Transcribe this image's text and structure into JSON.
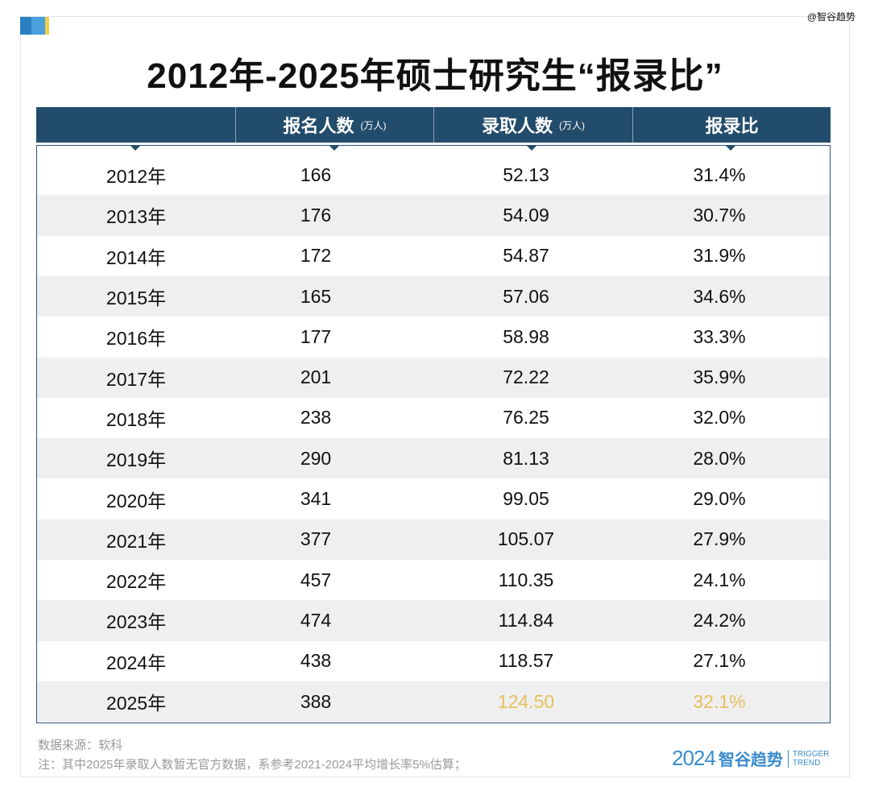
{
  "watermark": "@智谷趋势",
  "title": "2012年-2025年硕士研究生“报录比”",
  "headers": [
    {
      "label": "",
      "unit": ""
    },
    {
      "label": "报名人数",
      "unit": "(万人)"
    },
    {
      "label": "录取人数",
      "unit": "(万人)"
    },
    {
      "label": "报录比",
      "unit": ""
    }
  ],
  "rows": [
    {
      "year": "2012年",
      "applicants": "166",
      "admitted": "52.13",
      "ratio": "31.4%"
    },
    {
      "year": "2013年",
      "applicants": "176",
      "admitted": "54.09",
      "ratio": "30.7%"
    },
    {
      "year": "2014年",
      "applicants": "172",
      "admitted": "54.87",
      "ratio": "31.9%"
    },
    {
      "year": "2015年",
      "applicants": "165",
      "admitted": "57.06",
      "ratio": "34.6%"
    },
    {
      "year": "2016年",
      "applicants": "177",
      "admitted": "58.98",
      "ratio": "33.3%"
    },
    {
      "year": "2017年",
      "applicants": "201",
      "admitted": "72.22",
      "ratio": "35.9%"
    },
    {
      "year": "2018年",
      "applicants": "238",
      "admitted": "76.25",
      "ratio": "32.0%"
    },
    {
      "year": "2019年",
      "applicants": "290",
      "admitted": "81.13",
      "ratio": "28.0%"
    },
    {
      "year": "2020年",
      "applicants": "341",
      "admitted": "99.05",
      "ratio": "29.0%"
    },
    {
      "year": "2021年",
      "applicants": "377",
      "admitted": "105.07",
      "ratio": "27.9%"
    },
    {
      "year": "2022年",
      "applicants": "457",
      "admitted": "110.35",
      "ratio": "24.1%"
    },
    {
      "year": "2023年",
      "applicants": "474",
      "admitted": "114.84",
      "ratio": "24.2%"
    },
    {
      "year": "2024年",
      "applicants": "438",
      "admitted": "118.57",
      "ratio": "27.1%"
    },
    {
      "year": "2025年",
      "applicants": "388",
      "admitted": "124.50",
      "ratio": "32.1%",
      "estimated": true
    }
  ],
  "colors": {
    "header": "#224c6b",
    "estimate": "#e6c05a",
    "alt_row": "#efefef",
    "logo": "#3b8ccc"
  },
  "footer": {
    "source": "数据来源：软科",
    "note": "注：其中2025年录取人数暂无官方数据，系参考2021-2024平均增长率5%估算；"
  },
  "logo": {
    "year": "2024",
    "name": "智谷趋势",
    "en1": "TRIGGER",
    "en2": "TREND"
  }
}
